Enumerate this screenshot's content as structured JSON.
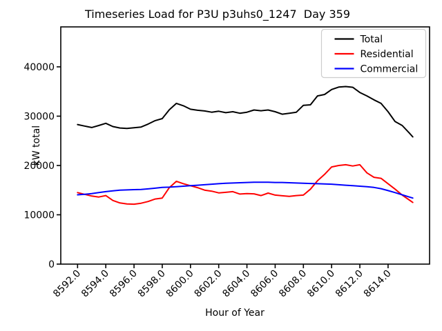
{
  "figure": {
    "background": "#ffffff",
    "axes_edge_color": "#000000"
  },
  "chart_data": {
    "type": "line",
    "title": "Timeseries Load for P3U p3uhs0_1247  Day 359",
    "xlabel": "Hour of Year",
    "ylabel": "kW total",
    "grid": false,
    "legend_position": "upper right",
    "legend_entries": [
      "Total",
      "Residential",
      "Commercial"
    ],
    "xlim": [
      8590.81,
      8616.94
    ],
    "ylim": [
      0,
      48100
    ],
    "xticks": [
      8592,
      8594,
      8596,
      8598,
      8600,
      8602,
      8604,
      8606,
      8608,
      8610,
      8612,
      8614
    ],
    "xtick_labels": [
      "8592.0",
      "8594.0",
      "8596.0",
      "8598.0",
      "8600.0",
      "8602.0",
      "8604.0",
      "8606.0",
      "8608.0",
      "8610.0",
      "8612.0",
      "8614.0"
    ],
    "yticks": [
      0,
      10000,
      20000,
      30000,
      40000
    ],
    "ytick_labels": [
      "0",
      "10000",
      "20000",
      "30000",
      "40000"
    ],
    "x": [
      8592,
      8592.5,
      8593,
      8593.5,
      8594,
      8594.5,
      8595,
      8595.5,
      8596,
      8596.5,
      8597,
      8597.5,
      8598,
      8598.5,
      8599,
      8599.5,
      8600,
      8600.5,
      8601,
      8601.5,
      8602,
      8602.5,
      8603,
      8603.5,
      8604,
      8604.5,
      8605,
      8605.5,
      8606,
      8606.5,
      8607,
      8607.5,
      8608,
      8608.5,
      8609,
      8609.5,
      8610,
      8610.5,
      8611,
      8611.5,
      8612,
      8612.5,
      8613,
      8613.5,
      8614,
      8614.5,
      8615,
      8615.5,
      8615.75
    ],
    "series": [
      {
        "name": "Total",
        "color": "#000000",
        "values": [
          28300,
          28000,
          27700,
          28100,
          28550,
          27900,
          27600,
          27500,
          27650,
          27800,
          28400,
          29100,
          29500,
          31300,
          32600,
          32100,
          31400,
          31200,
          31050,
          30800,
          31000,
          30700,
          30900,
          30600,
          30800,
          31250,
          31100,
          31250,
          30900,
          30400,
          30600,
          30800,
          32200,
          32300,
          34100,
          34400,
          35400,
          35900,
          36000,
          35850,
          34800,
          34100,
          33300,
          32600,
          30900,
          28900,
          28100,
          26600,
          25800
        ]
      },
      {
        "name": "Residential",
        "color": "#ff0000",
        "values": [
          14500,
          14150,
          13800,
          13600,
          13900,
          12900,
          12400,
          12200,
          12150,
          12350,
          12700,
          13200,
          13400,
          15500,
          16800,
          16300,
          15900,
          15500,
          15000,
          14800,
          14450,
          14550,
          14700,
          14200,
          14300,
          14250,
          13900,
          14400,
          14000,
          13850,
          13750,
          13900,
          14000,
          15200,
          16900,
          18200,
          19700,
          20000,
          20150,
          19900,
          20150,
          18500,
          17600,
          17400,
          16300,
          15200,
          14000,
          13000,
          12500
        ]
      },
      {
        "name": "Commercial",
        "color": "#0000ff",
        "values": [
          14050,
          14150,
          14300,
          14500,
          14700,
          14850,
          15000,
          15050,
          15100,
          15150,
          15250,
          15400,
          15550,
          15600,
          15700,
          15800,
          15900,
          16000,
          16100,
          16200,
          16300,
          16400,
          16450,
          16500,
          16550,
          16600,
          16600,
          16600,
          16550,
          16550,
          16500,
          16450,
          16400,
          16350,
          16300,
          16250,
          16200,
          16100,
          16000,
          15900,
          15800,
          15700,
          15550,
          15300,
          14900,
          14500,
          14050,
          13600,
          13400
        ]
      }
    ]
  }
}
